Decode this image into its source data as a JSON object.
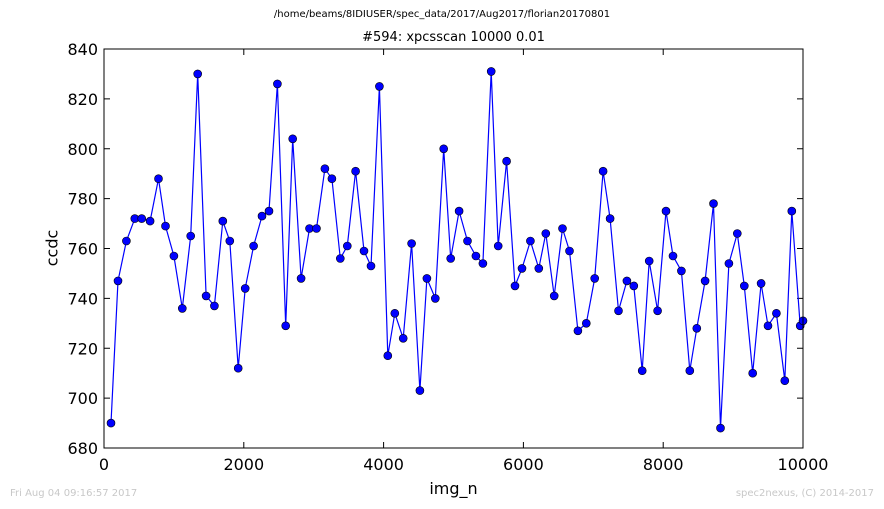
{
  "suptitle": "/home/beams/8IDIUSER/spec_data/2017/Aug2017/florian20170801",
  "footer_left": "Fri Aug 04 09:16:57 2017",
  "footer_right": "spec2nexus, (C) 2014-2017",
  "colors": {
    "line": "#0000ff",
    "marker": "#0000ff"
  },
  "chart_data": {
    "type": "line",
    "title": "#594: xpcsscan 10000 0.01",
    "xlabel": "img_n",
    "ylabel": "ccdc",
    "xlim": [
      0,
      10000
    ],
    "ylim": [
      680,
      840
    ],
    "xticks": [
      0,
      2000,
      4000,
      6000,
      8000,
      10000
    ],
    "yticks": [
      680,
      700,
      720,
      740,
      760,
      780,
      800,
      820,
      840
    ],
    "grid": false,
    "x": [
      100,
      200,
      320,
      440,
      540,
      660,
      780,
      880,
      1000,
      1120,
      1240,
      1340,
      1460,
      1580,
      1700,
      1800,
      1920,
      2020,
      2140,
      2260,
      2360,
      2480,
      2600,
      2700,
      2820,
      2940,
      3040,
      3160,
      3260,
      3380,
      3480,
      3600,
      3720,
      3820,
      3940,
      4060,
      4160,
      4280,
      4400,
      4520,
      4620,
      4740,
      4860,
      4960,
      5080,
      5200,
      5320,
      5420,
      5540,
      5640,
      5760,
      5880,
      5980,
      6100,
      6220,
      6320,
      6440,
      6560,
      6660,
      6780,
      6900,
      7020,
      7140,
      7240,
      7360,
      7480,
      7580,
      7700,
      7800,
      7920,
      8040,
      8140,
      8260,
      8380,
      8480,
      8600,
      8720,
      8820,
      8940,
      9060,
      9160,
      9280,
      9400,
      9500,
      9620,
      9740,
      9840,
      9960,
      10000
    ],
    "y": [
      690,
      747,
      763,
      772,
      772,
      771,
      788,
      769,
      757,
      736,
      765,
      830,
      741,
      737,
      771,
      763,
      712,
      744,
      761,
      773,
      775,
      826,
      729,
      804,
      748,
      768,
      768,
      792,
      788,
      756,
      761,
      791,
      759,
      753,
      825,
      717,
      734,
      724,
      762,
      703,
      748,
      740,
      800,
      756,
      775,
      763,
      757,
      754,
      831,
      761,
      795,
      745,
      752,
      763,
      752,
      766,
      741,
      768,
      759,
      727,
      730,
      748,
      791,
      772,
      735,
      747,
      745,
      711,
      755,
      735,
      775,
      757,
      751,
      711,
      728,
      747,
      778,
      688,
      754,
      766,
      745,
      710,
      746,
      729,
      734,
      707,
      775,
      729,
      731
    ]
  }
}
